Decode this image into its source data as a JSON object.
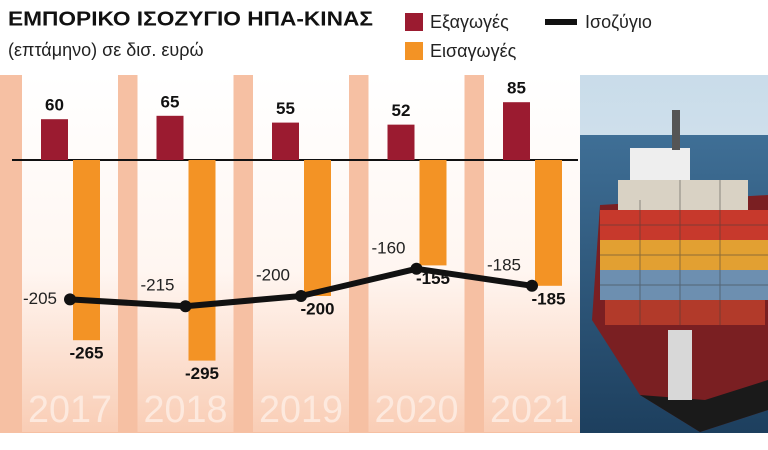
{
  "chart_data": {
    "type": "bar",
    "title": "ΕΜΠΟΡΙΚΟ ΙΣΟΖΥΓΙΟ ΗΠΑ-ΚΙΝΑΣ",
    "subtitle": "(επτάμηνο) σε δισ. ευρώ",
    "categories": [
      "2017",
      "2018",
      "2019",
      "2020",
      "2021"
    ],
    "series": [
      {
        "name": "Εξαγωγές",
        "type": "bar",
        "color": "#9b1b30",
        "values": [
          60,
          65,
          55,
          52,
          85
        ]
      },
      {
        "name": "Εισαγωγές",
        "type": "bar",
        "color": "#f39325",
        "values": [
          -265,
          -295,
          -200,
          -155,
          -185
        ]
      },
      {
        "name": "Ισοζύγιο",
        "type": "line",
        "color": "#111111",
        "values": [
          -205,
          -215,
          -200,
          -160,
          -185
        ]
      }
    ],
    "ylim": [
      -400,
      125
    ]
  }
}
